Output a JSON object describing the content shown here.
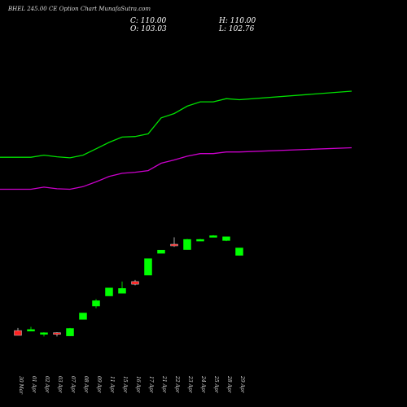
{
  "chart_data": {
    "type": "candlestick",
    "title": "BHEL 245.00 CE Option Chart MunafaSutra.com",
    "ohlc_readout": {
      "open": "103.03",
      "high": "110.00",
      "low": "102.76",
      "close": "110.00"
    },
    "labels": {
      "open": "O:",
      "high": "H:",
      "low": "L:",
      "close": "C:"
    },
    "categories": [
      "30 Mar",
      "01 Apr",
      "02 Apr",
      "03 Apr",
      "07 Apr",
      "08 Apr",
      "09 Apr",
      "11 Apr",
      "15 Apr",
      "16 Apr",
      "17 Apr",
      "21 Apr",
      "22 Apr",
      "23 Apr",
      "24 Apr",
      "25 Apr",
      "28 Apr",
      "29 Apr"
    ],
    "candles": [
      {
        "o": 32.5,
        "h": 35.0,
        "l": 28.0,
        "c": 28.0
      },
      {
        "o": 32.5,
        "h": 36.0,
        "l": 32.0,
        "c": 33.5
      },
      {
        "o": 30.5,
        "h": 31.0,
        "l": 27.0,
        "c": 30.5
      },
      {
        "o": 30.5,
        "h": 31.0,
        "l": 27.0,
        "c": 29.0
      },
      {
        "o": 27.5,
        "h": 35.0,
        "l": 27.5,
        "c": 34.5
      },
      {
        "o": 43.0,
        "h": 49.0,
        "l": 43.0,
        "c": 49.0
      },
      {
        "o": 55.5,
        "h": 62.0,
        "l": 53.5,
        "c": 60.5
      },
      {
        "o": 65.0,
        "h": 72.5,
        "l": 65.0,
        "c": 72.5
      },
      {
        "o": 67.5,
        "h": 78.5,
        "l": 67.5,
        "c": 72.0
      },
      {
        "o": 78.5,
        "h": 80.0,
        "l": 75.0,
        "c": 76.0
      },
      {
        "o": 84.5,
        "h": 100.0,
        "l": 84.5,
        "c": 100.0
      },
      {
        "o": 105.0,
        "h": 108.0,
        "l": 105.0,
        "c": 108.0
      },
      {
        "o": 113.5,
        "h": 120.0,
        "l": 111.0,
        "c": 112.5
      },
      {
        "o": 108.5,
        "h": 118.5,
        "l": 108.5,
        "c": 118.0
      },
      {
        "o": 118.0,
        "h": 118.5,
        "l": 117.5,
        "c": 118.0
      },
      {
        "o": 121.5,
        "h": 122.0,
        "l": 121.0,
        "c": 121.5
      },
      {
        "o": 117.0,
        "h": 120.5,
        "l": 116.5,
        "c": 120.5
      },
      {
        "o": 103.03,
        "h": 110.0,
        "l": 102.76,
        "c": 110.0
      }
    ],
    "moving_averages": [
      {
        "color": "#00e000",
        "values": [
          195.0,
          195.0,
          197.0,
          195.5,
          194.5,
          197.0,
          203.0,
          209.0,
          214.0,
          214.5,
          217.0,
          232.0,
          236.0,
          243.0,
          247.0,
          247.0,
          250.0,
          249.0
        ]
      },
      {
        "color": "#cc00cc",
        "values": [
          165.0,
          165.0,
          167.0,
          165.5,
          165.0,
          167.5,
          172.0,
          177.0,
          180.0,
          181.0,
          182.5,
          189.5,
          192.5,
          196.0,
          198.5,
          198.5,
          200.0,
          200.0
        ]
      }
    ],
    "ma_tail_values": {
      "green": 257.0,
      "magenta": 204.0
    },
    "ylim": [
      0,
      300
    ],
    "up_color": "#00ff00",
    "down_color": "#ff2020",
    "grid": false
  }
}
